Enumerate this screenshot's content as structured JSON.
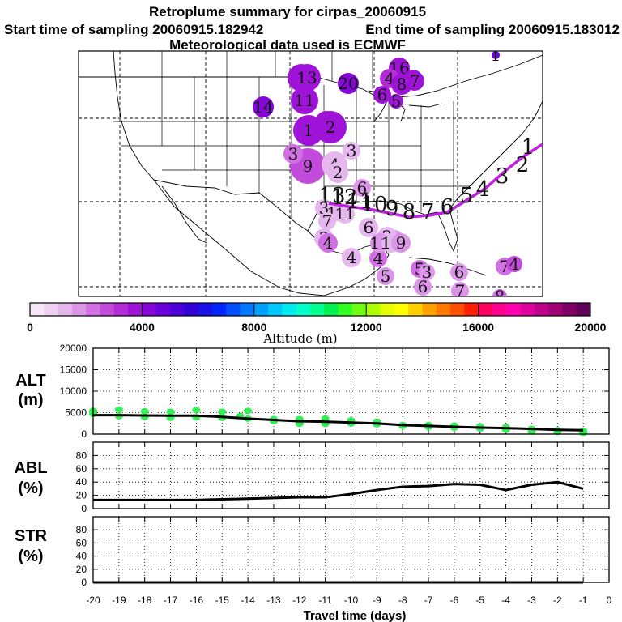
{
  "header": {
    "title": "Retroplume summary for cirpas_20060915",
    "sampling_start": "Start time of sampling 20060915.182942",
    "sampling_end": "End time of sampling 20060915.183012",
    "met_data": "Meteorological data used is ECMWF"
  },
  "colorbar": {
    "ticks": [
      "0",
      "4000",
      "8000",
      "12000",
      "16000",
      "20000"
    ],
    "tick_values": [
      0,
      4000,
      8000,
      12000,
      16000,
      20000
    ],
    "label": "Altitude (m)",
    "range": [
      0,
      20000
    ],
    "colors": [
      "#f6e6f8",
      "#efd0f3",
      "#e6b6ee",
      "#dc96e8",
      "#d070e2",
      "#c24bdc",
      "#b32ad8",
      "#9f12d8",
      "#8606da",
      "#6a00db",
      "#4d00d9",
      "#3300d8",
      "#1a10e8",
      "#0026ff",
      "#0050ff",
      "#0078ff",
      "#00a0ff",
      "#00c8ff",
      "#00e8f0",
      "#00ffc8",
      "#00ff90",
      "#00f050",
      "#30ff20",
      "#70ff10",
      "#b0ff00",
      "#e6ff00",
      "#ffff00",
      "#ffd000",
      "#ffa000",
      "#ff7800",
      "#ff5000",
      "#ff2000",
      "#ff0060",
      "#ff0090",
      "#ff00b0",
      "#e000a0",
      "#c0008a",
      "#a00078",
      "#800068",
      "#600058"
    ]
  },
  "map": {
    "track_day_labels": [
      "1",
      "2",
      "3",
      "4",
      "5",
      "6",
      "7",
      "8",
      "9",
      "10",
      "11",
      "12",
      "13",
      "14",
      "15",
      "16",
      "17",
      "18",
      "19",
      "20"
    ],
    "plume_markers": [
      {
        "label": "1",
        "alt": 3600,
        "r": 17
      },
      {
        "label": "13",
        "alt": 3800,
        "r": 17
      },
      {
        "label": "16",
        "alt": 3800,
        "r": 13
      },
      {
        "label": "14",
        "alt": 4400,
        "r": 13
      },
      {
        "label": "20",
        "alt": 4200,
        "r": 13
      },
      {
        "label": "3",
        "alt": 3800,
        "r": 12
      },
      {
        "label": "4",
        "alt": 3200,
        "r": 12
      },
      {
        "label": "8",
        "alt": 3900,
        "r": 13
      },
      {
        "label": "7",
        "alt": 3900,
        "r": 12
      },
      {
        "label": "11",
        "alt": 3800,
        "r": 17
      },
      {
        "label": "6",
        "alt": 3600,
        "r": 11
      },
      {
        "label": "5",
        "alt": 3800,
        "r": 9
      },
      {
        "label": "4",
        "alt": 3600,
        "r": 14
      },
      {
        "label": "2",
        "alt": 3900,
        "r": 20
      },
      {
        "label": "1",
        "alt": 3700,
        "r": 19
      },
      {
        "label": "9",
        "alt": 2600,
        "r": 22
      },
      {
        "label": "3",
        "alt": 2300,
        "r": 12
      },
      {
        "label": "3",
        "alt": 1200,
        "r": 11
      },
      {
        "label": "4",
        "alt": 1200,
        "r": 16
      },
      {
        "label": "2",
        "alt": 1400,
        "r": 13
      },
      {
        "label": "6",
        "alt": 1600,
        "r": 11
      },
      {
        "label": "3",
        "alt": 1200,
        "r": 11
      },
      {
        "label": "12",
        "alt": 1300,
        "r": 10
      },
      {
        "label": "11",
        "alt": 1300,
        "r": 12
      },
      {
        "label": "7",
        "alt": 1200,
        "r": 11
      },
      {
        "label": "4",
        "alt": 1300,
        "r": 12
      },
      {
        "label": "10",
        "alt": 1700,
        "r": 12
      },
      {
        "label": "6",
        "alt": 1200,
        "r": 12
      },
      {
        "label": "2",
        "alt": 1200,
        "r": 12
      },
      {
        "label": "3",
        "alt": 1400,
        "r": 12
      },
      {
        "label": "4",
        "alt": 2200,
        "r": 12
      },
      {
        "label": "4",
        "alt": 2200,
        "r": 11
      },
      {
        "label": "11",
        "alt": 1500,
        "r": 12
      },
      {
        "label": "10",
        "alt": 1400,
        "r": 12
      },
      {
        "label": "9",
        "alt": 1700,
        "r": 12
      },
      {
        "label": "5",
        "alt": 1700,
        "r": 11
      },
      {
        "label": "5",
        "alt": 2300,
        "r": 11
      },
      {
        "label": "6",
        "alt": 1900,
        "r": 11
      },
      {
        "label": "3",
        "alt": 1600,
        "r": 10
      },
      {
        "label": "6",
        "alt": 1800,
        "r": 11
      },
      {
        "label": "7",
        "alt": 1800,
        "r": 11
      },
      {
        "label": "7",
        "alt": 2400,
        "r": 11
      },
      {
        "label": "4",
        "alt": 2600,
        "r": 10
      },
      {
        "label": "8",
        "alt": 2200,
        "r": 9
      },
      {
        "label": "1",
        "alt": 4600,
        "r": 5
      }
    ]
  },
  "panels": {
    "alt": {
      "label_top": "ALT",
      "label_bottom": "(m)"
    },
    "abl": {
      "label_top": "ABL",
      "label_bottom": "(%)"
    },
    "str": {
      "label_top": "STR",
      "label_bottom": "(%)"
    }
  },
  "x_axis": {
    "label": "Travel time (days)",
    "ticks": [
      "-20",
      "-19",
      "-18",
      "-17",
      "-16",
      "-15",
      "-14",
      "-13",
      "-12",
      "-11",
      "-10",
      "-9",
      "-8",
      "-7",
      "-6",
      "-5",
      "-4",
      "-3",
      "-2",
      "-1",
      "0"
    ]
  },
  "chart_data": [
    {
      "type": "line",
      "title": "ALT",
      "xlabel": "Travel time (days)",
      "ylabel": "ALT (m)",
      "xlim": [
        -20,
        0
      ],
      "ylim": [
        0,
        20000
      ],
      "yticks": [
        0,
        5000,
        10000,
        15000,
        20000
      ],
      "x": [
        -20,
        -19,
        -18,
        -17,
        -16,
        -15,
        -14,
        -13,
        -12,
        -11,
        -10,
        -9,
        -8,
        -7,
        -6,
        -5,
        -4,
        -3,
        -2,
        -1
      ],
      "series": [
        {
          "name": "mean altitude",
          "color": "#000000",
          "values": [
            4400,
            4400,
            4350,
            4300,
            4300,
            4000,
            3600,
            3300,
            3000,
            2900,
            2700,
            2500,
            2100,
            1900,
            1700,
            1500,
            1400,
            1200,
            1000,
            900
          ]
        }
      ],
      "scatter": {
        "color": "#33ee55",
        "points": [
          [
            -20,
            4700
          ],
          [
            -20,
            5400
          ],
          [
            -19,
            4200
          ],
          [
            -19,
            5700
          ],
          [
            -18,
            4000
          ],
          [
            -18,
            5300
          ],
          [
            -17,
            3800
          ],
          [
            -17,
            5200
          ],
          [
            -16,
            3900
          ],
          [
            -16,
            5600
          ],
          [
            -15,
            3800
          ],
          [
            -15,
            5200
          ],
          [
            -14.3,
            4200
          ],
          [
            -14,
            3600
          ],
          [
            -14,
            5400
          ],
          [
            -13,
            3500
          ],
          [
            -13,
            3000
          ],
          [
            -12,
            3500
          ],
          [
            -12,
            2900
          ],
          [
            -12,
            2400
          ],
          [
            -11,
            3600
          ],
          [
            -11,
            2400
          ],
          [
            -10,
            3200
          ],
          [
            -10,
            2500
          ],
          [
            -9,
            2900
          ],
          [
            -9,
            2300
          ],
          [
            -8,
            2100
          ],
          [
            -8,
            1900
          ],
          [
            -7,
            2100
          ],
          [
            -7,
            1700
          ],
          [
            -6,
            2000
          ],
          [
            -6,
            1500
          ],
          [
            -5,
            1800
          ],
          [
            -5,
            1300
          ],
          [
            -4,
            1600
          ],
          [
            -4,
            1000
          ],
          [
            -3,
            1200
          ],
          [
            -3,
            600
          ],
          [
            -2,
            900
          ],
          [
            -2,
            500
          ],
          [
            -1,
            800
          ],
          [
            -1,
            300
          ]
        ]
      }
    },
    {
      "type": "line",
      "title": "ABL",
      "xlabel": "Travel time (days)",
      "ylabel": "ABL (%)",
      "xlim": [
        -20,
        0
      ],
      "ylim": [
        0,
        100
      ],
      "yticks": [
        0,
        20,
        40,
        60,
        80
      ],
      "x": [
        -20,
        -19,
        -18,
        -17,
        -16,
        -15,
        -14,
        -13,
        -12,
        -11,
        -10,
        -9,
        -8,
        -7,
        -6,
        -5,
        -4,
        -3,
        -2,
        -1
      ],
      "series": [
        {
          "name": "ABL fraction",
          "color": "#000000",
          "values": [
            13,
            13,
            13,
            13,
            13,
            14,
            15,
            16,
            17,
            17,
            22,
            28,
            33,
            34,
            37,
            36,
            28,
            36,
            40,
            30
          ]
        }
      ]
    },
    {
      "type": "line",
      "title": "STR",
      "xlabel": "Travel time (days)",
      "ylabel": "STR (%)",
      "xlim": [
        -20,
        0
      ],
      "ylim": [
        0,
        100
      ],
      "yticks": [
        0,
        20,
        40,
        60,
        80
      ],
      "x": [
        -20,
        -19,
        -18,
        -17,
        -16,
        -15,
        -14,
        -13,
        -12,
        -11,
        -10,
        -9,
        -8,
        -7,
        -6,
        -5,
        -4,
        -3,
        -2,
        -1
      ],
      "series": [
        {
          "name": "STR fraction",
          "color": "#000000",
          "values": [
            0,
            0,
            0,
            0,
            0,
            0,
            0,
            0,
            0,
            0,
            0,
            0,
            0,
            0,
            0,
            0,
            0,
            0,
            0,
            0
          ]
        }
      ]
    }
  ]
}
